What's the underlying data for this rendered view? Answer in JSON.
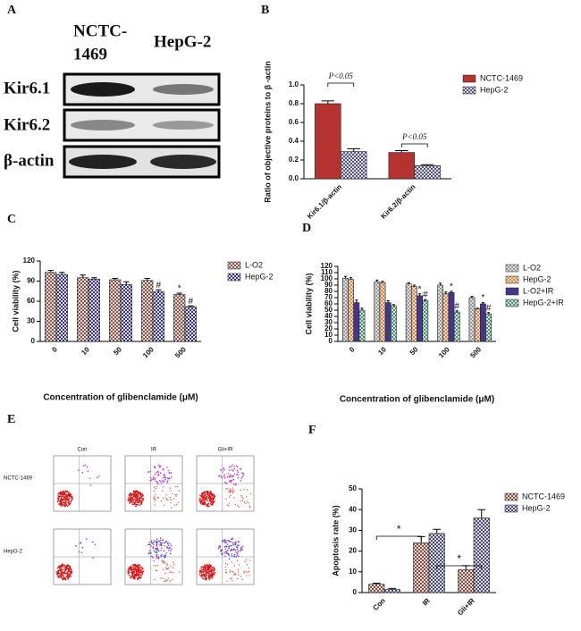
{
  "panel_labels": [
    "A",
    "B",
    "C",
    "D",
    "E",
    "F"
  ],
  "blot": {
    "columns": [
      [
        "NCTC-",
        "1469"
      ],
      [
        "HepG-2"
      ]
    ],
    "rows": [
      "Kir6.1",
      "Kir6.2",
      "β-actin"
    ]
  },
  "flow": {
    "columns": [
      "Con",
      "IR",
      "Gli+IR"
    ],
    "rows": [
      "NCTC-1469",
      "HepG-2"
    ]
  },
  "chart_data": [
    {
      "type": "bar",
      "ylabel": "Ratio of objective proteins to β -actin",
      "categories": [
        "Kir6.1/β-actin",
        "Kir6.2/β-actin"
      ],
      "series": [
        {
          "name": "NCTC-1469",
          "color": "#b5332e",
          "pattern": "solid",
          "values": [
            0.8,
            0.28
          ],
          "errors": [
            0.03,
            0.02
          ]
        },
        {
          "name": "HepG-2",
          "color": "#55557f",
          "pattern": "checker",
          "values": [
            0.29,
            0.14
          ],
          "errors": [
            0.03,
            0.01
          ]
        }
      ],
      "ylim": [
        0,
        1.0
      ],
      "yticks": [
        {
          "value": 0,
          "label": "0.0"
        },
        0.2,
        0.4,
        0.6,
        0.8,
        {
          "value": 1.0,
          "label": "1.0"
        }
      ],
      "annotations": [
        "P<0.05",
        "P<0.05"
      ],
      "legend": "right"
    },
    {
      "type": "bar",
      "ylabel": "Cell viability (%)",
      "xlabel": "Concentration of glibenclamide (μM)",
      "categories": [
        "0",
        "10",
        "50",
        "100",
        "500"
      ],
      "series": [
        {
          "name": "L-O2",
          "color": "#8b5444",
          "pattern": "checker",
          "values": [
            103,
            95,
            92,
            91,
            70
          ],
          "errors": [
            3,
            4,
            2,
            3,
            2
          ],
          "sig": [
            null,
            null,
            null,
            null,
            "*"
          ]
        },
        {
          "name": "HepG-2",
          "color": "#3a3380",
          "pattern": "checker",
          "values": [
            100,
            93,
            85,
            74,
            52
          ],
          "errors": [
            3,
            2,
            4,
            3,
            1
          ],
          "sig": [
            null,
            null,
            null,
            "#",
            "#"
          ]
        }
      ],
      "ylim": [
        0,
        120
      ],
      "yticks": [
        0,
        30,
        60,
        90,
        120
      ],
      "legend": "right"
    },
    {
      "type": "bar",
      "ylabel": "Cell viability (%)",
      "xlabel": "Concentration of glibenclamide (μM)",
      "categories": [
        "0",
        "10",
        "50",
        "100",
        "500"
      ],
      "series": [
        {
          "name": "L-O2",
          "color": "#999999",
          "pattern": "checker",
          "values": [
            101,
            95,
            92,
            90,
            70
          ],
          "errors": [
            3,
            3,
            2,
            3,
            2
          ],
          "sig": [
            null,
            null,
            null,
            null,
            null
          ]
        },
        {
          "name": "HepG-2",
          "color": "#e0873a",
          "pattern": "checker",
          "values": [
            99,
            94,
            88,
            76,
            52
          ],
          "errors": [
            3,
            2,
            2,
            3,
            1
          ],
          "sig": [
            null,
            null,
            null,
            null,
            null
          ]
        },
        {
          "name": "L-O2+IR",
          "color": "#44368a",
          "pattern": "solid",
          "values": [
            62,
            62,
            73,
            78,
            60
          ],
          "errors": [
            4,
            3,
            3,
            2,
            2
          ],
          "sig": [
            null,
            null,
            "*",
            "*",
            "*"
          ]
        },
        {
          "name": "HepG-2+IR",
          "color": "#3c9a6c",
          "pattern": "checker",
          "values": [
            50,
            57,
            65,
            47,
            44
          ],
          "errors": [
            3,
            2,
            2,
            2,
            2
          ],
          "sig": [
            null,
            null,
            "#",
            "#",
            "#"
          ]
        }
      ],
      "ylim": [
        0,
        120
      ],
      "yticks": [
        0,
        10,
        20,
        30,
        40,
        50,
        60,
        70,
        80,
        90,
        100,
        110,
        120
      ],
      "legend": "right"
    },
    {
      "type": "bar",
      "ylabel": "Apoptosis rate (%)",
      "categories": [
        "Con",
        "IR",
        "Gli+IR"
      ],
      "series": [
        {
          "name": "NCTC-1469",
          "color": "#8b4a3a",
          "pattern": "checker",
          "values": [
            4,
            24,
            11
          ],
          "errors": [
            0.5,
            3,
            2
          ]
        },
        {
          "name": "HepG-2",
          "color": "#4a4a7a",
          "pattern": "checker",
          "values": [
            1.5,
            28.5,
            36
          ],
          "errors": [
            0.5,
            2,
            4
          ]
        }
      ],
      "ylim": [
        0,
        50
      ],
      "yticks": [
        0,
        10,
        20,
        30,
        40,
        50
      ],
      "annotations": [
        "*",
        "*"
      ],
      "legend": "right"
    }
  ]
}
